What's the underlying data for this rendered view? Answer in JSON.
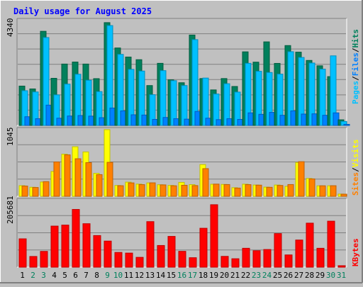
{
  "chart_data": [
    {
      "type": "bar",
      "title": "Daily usage for August 2025",
      "panel": "hits-files-pages",
      "ymax_label": "4340",
      "ylim": [
        0,
        4340
      ],
      "legend": [
        "Pages",
        "Files",
        "Hits"
      ],
      "days": [
        "1",
        "2",
        "3",
        "4",
        "5",
        "6",
        "7",
        "8",
        "9",
        "10",
        "11",
        "12",
        "13",
        "14",
        "15",
        "16",
        "17",
        "18",
        "19",
        "20",
        "21",
        "22",
        "23",
        "24",
        "25",
        "26",
        "27",
        "28",
        "29",
        "30",
        "31"
      ],
      "weekend_days": [
        2,
        3,
        9,
        10,
        16,
        17,
        23,
        24,
        30,
        31
      ],
      "series": [
        {
          "name": "Hits",
          "color": "#00805c",
          "values": [
            1628,
            1510,
            3895,
            1950,
            2540,
            2623,
            2540,
            1936,
            4254,
            3205,
            2830,
            2720,
            1650,
            2570,
            1887,
            1767,
            3740,
            1940,
            1470,
            1940,
            1612,
            3045,
            2618,
            3458,
            2567,
            3305,
            3032,
            2690,
            2468,
            2020,
            232
          ]
        },
        {
          "name": "Files",
          "color": "#00c0ff",
          "values": [
            1437,
            1386,
            3637,
            1265,
            1710,
            2118,
            1870,
            1400,
            4132,
            2940,
            2320,
            2250,
            1272,
            2268,
            1852,
            1650,
            3551,
            1960,
            1300,
            1726,
            1380,
            2570,
            2240,
            2190,
            2123,
            3051,
            2813,
            2582,
            2330,
            2880,
            165
          ]
        },
        {
          "name": "Pages",
          "color": "#0080ff",
          "values": [
            360,
            280,
            840,
            300,
            390,
            410,
            385,
            320,
            720,
            600,
            440,
            430,
            250,
            330,
            280,
            260,
            580,
            300,
            240,
            280,
            250,
            520,
            460,
            540,
            420,
            600,
            470,
            480,
            420,
            520,
            45
          ]
        }
      ]
    },
    {
      "type": "bar",
      "panel": "visits-sites",
      "ymax_label": "1045",
      "ylim": [
        0,
        1045
      ],
      "legend": [
        "Sites",
        "Visits"
      ],
      "days": [
        "1",
        "2",
        "3",
        "4",
        "5",
        "6",
        "7",
        "8",
        "9",
        "10",
        "11",
        "12",
        "13",
        "14",
        "15",
        "16",
        "17",
        "18",
        "19",
        "20",
        "21",
        "22",
        "23",
        "24",
        "25",
        "26",
        "27",
        "28",
        "29",
        "30",
        "31"
      ],
      "series": [
        {
          "name": "Visits",
          "color": "#ffff00",
          "values": [
            167,
            142,
            224,
            389,
            661,
            777,
            696,
            360,
            1045,
            170,
            222,
            191,
            210,
            181,
            171,
            218,
            183,
            498,
            189,
            186,
            135,
            190,
            177,
            144,
            177,
            156,
            531,
            280,
            164,
            165,
            35
          ]
        },
        {
          "name": "Sites",
          "color": "#ff8000",
          "values": [
            161,
            138,
            230,
            539,
            650,
            589,
            528,
            340,
            533,
            166,
            210,
            183,
            211,
            179,
            165,
            173,
            168,
            434,
            191,
            184,
            129,
            183,
            175,
            141,
            170,
            184,
            543,
            273,
            165,
            166,
            33
          ]
        }
      ]
    },
    {
      "type": "bar",
      "panel": "kbytes",
      "ymax_label": "205681",
      "ylim": [
        0,
        205681
      ],
      "legend": [
        "KBytes"
      ],
      "days": [
        "1",
        "2",
        "3",
        "4",
        "5",
        "6",
        "7",
        "8",
        "9",
        "10",
        "11",
        "12",
        "13",
        "14",
        "15",
        "16",
        "17",
        "18",
        "19",
        "20",
        "21",
        "22",
        "23",
        "24",
        "25",
        "26",
        "27",
        "28",
        "29",
        "30",
        "31"
      ],
      "series": [
        {
          "name": "KBytes",
          "color": "#ff0000",
          "values": [
            87500,
            33000,
            48700,
            126800,
            129900,
            178200,
            134200,
            97600,
            80500,
            45500,
            43500,
            30300,
            140600,
            66900,
            95000,
            48900,
            29200,
            120100,
            192800,
            33300,
            26000,
            58300,
            50800,
            54500,
            103600,
            37800,
            83800,
            135900,
            58300,
            142000,
            4500
          ]
        }
      ]
    }
  ]
}
